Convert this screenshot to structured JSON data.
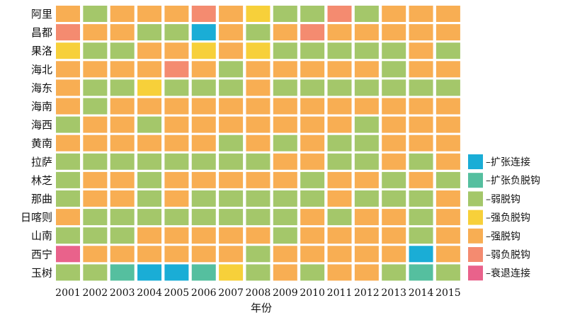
{
  "chart_data": {
    "type": "heatmap",
    "title": "",
    "xlabel": "年份",
    "ylabel": "",
    "years": [
      "2001",
      "2002",
      "2003",
      "2004",
      "2005",
      "2006",
      "2007",
      "2008",
      "2009",
      "2010",
      "2011",
      "2012",
      "2013",
      "2014",
      "2015"
    ],
    "regions": [
      "阿里",
      "昌都",
      "果洛",
      "海北",
      "海东",
      "海南",
      "海西",
      "黄南",
      "拉萨",
      "林芝",
      "那曲",
      "日喀则",
      "山南",
      "西宁",
      "玉树"
    ],
    "categories": [
      {
        "label": "–扩张连接",
        "color": "#1aadd6"
      },
      {
        "label": "–扩张负脱钩",
        "color": "#55bf9f"
      },
      {
        "label": "–弱脱钩",
        "color": "#a4c76a"
      },
      {
        "label": "–强负脱钩",
        "color": "#f7d03a"
      },
      {
        "label": "–强脱钩",
        "color": "#f8ae53"
      },
      {
        "label": "–弱负脱钩",
        "color": "#f48b70"
      },
      {
        "label": "–衰退连接",
        "color": "#e9628b"
      }
    ],
    "grid": [
      [
        4,
        2,
        4,
        4,
        4,
        5,
        4,
        3,
        2,
        2,
        5,
        2,
        4,
        4,
        4
      ],
      [
        5,
        4,
        4,
        2,
        2,
        0,
        4,
        2,
        4,
        5,
        4,
        4,
        4,
        4,
        4
      ],
      [
        3,
        2,
        2,
        4,
        4,
        3,
        4,
        3,
        2,
        2,
        2,
        2,
        2,
        4,
        2
      ],
      [
        4,
        4,
        4,
        4,
        5,
        4,
        2,
        4,
        4,
        4,
        4,
        4,
        2,
        4,
        4
      ],
      [
        4,
        2,
        2,
        3,
        2,
        2,
        2,
        4,
        2,
        2,
        2,
        2,
        2,
        2,
        2
      ],
      [
        4,
        2,
        4,
        4,
        4,
        4,
        4,
        4,
        4,
        4,
        4,
        4,
        4,
        4,
        4
      ],
      [
        2,
        4,
        4,
        2,
        4,
        4,
        4,
        4,
        4,
        4,
        4,
        2,
        4,
        4,
        4
      ],
      [
        4,
        4,
        4,
        4,
        4,
        4,
        2,
        4,
        2,
        4,
        2,
        2,
        4,
        4,
        4
      ],
      [
        2,
        2,
        2,
        2,
        2,
        2,
        2,
        2,
        4,
        4,
        2,
        2,
        4,
        2,
        4
      ],
      [
        2,
        4,
        4,
        2,
        4,
        4,
        4,
        4,
        4,
        2,
        4,
        4,
        2,
        4,
        2
      ],
      [
        2,
        4,
        4,
        2,
        4,
        2,
        2,
        2,
        2,
        2,
        4,
        2,
        2,
        2,
        4
      ],
      [
        4,
        2,
        2,
        2,
        2,
        2,
        2,
        2,
        2,
        4,
        2,
        4,
        4,
        2,
        4
      ],
      [
        2,
        2,
        2,
        4,
        4,
        4,
        4,
        4,
        2,
        4,
        4,
        4,
        4,
        2,
        4
      ],
      [
        6,
        4,
        4,
        4,
        4,
        4,
        4,
        2,
        4,
        4,
        4,
        4,
        4,
        0,
        4
      ],
      [
        2,
        2,
        1,
        0,
        0,
        1,
        3,
        2,
        4,
        2,
        4,
        4,
        2,
        1,
        2
      ]
    ]
  }
}
